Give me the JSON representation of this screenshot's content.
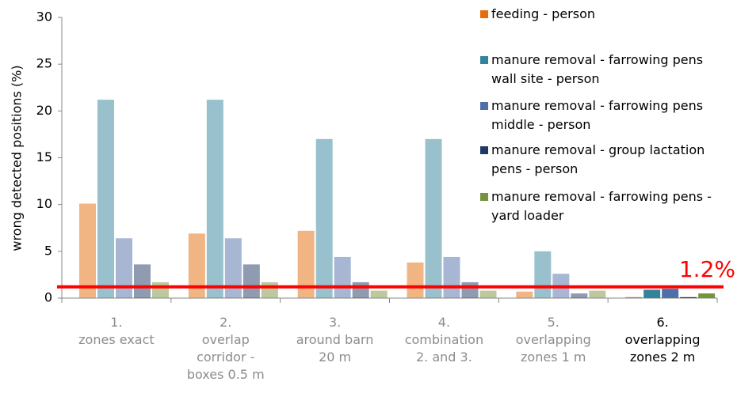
{
  "chart_data": {
    "type": "bar",
    "y_label": "wrong detected positions (%)",
    "categories": [
      [
        "1.",
        "zones exact"
      ],
      [
        "2.",
        "overlap",
        "corridor -",
        "boxes 0.5 m"
      ],
      [
        "3.",
        "around barn",
        "20 m"
      ],
      [
        "4.",
        "combination",
        "2. and 3."
      ],
      [
        "5.",
        "overlapping",
        "zones 1 m"
      ],
      [
        "6.",
        "overlapping",
        "zones 2 m"
      ]
    ],
    "highlighted_category": 5,
    "series": [
      {
        "name": "feeding - person",
        "color": "#e46c0a",
        "values": [
          10.1,
          6.9,
          7.2,
          3.8,
          0.7,
          0.1
        ]
      },
      {
        "name": "manure removal - farrowing pens wall site - person",
        "color": "#31849b",
        "values": [
          21.2,
          21.2,
          17.0,
          17.0,
          5.0,
          0.9
        ]
      },
      {
        "name": "manure removal - farrowing pens middle - person",
        "color": "#4f6fa8",
        "values": [
          6.4,
          6.4,
          4.4,
          4.4,
          2.6,
          1.0
        ]
      },
      {
        "name": "manure removal - group lactation pens - person",
        "color": "#1f3864",
        "values": [
          3.6,
          3.6,
          1.7,
          1.7,
          0.5,
          0.1
        ]
      },
      {
        "name": "manure removal - farrowing pens - yard loader",
        "color": "#77933c",
        "values": [
          1.7,
          1.7,
          0.8,
          0.8,
          0.8,
          0.5
        ]
      }
    ],
    "reference_line": {
      "value": 1.2,
      "label": "1.2%",
      "color": "#ff0000"
    },
    "ylim": [
      0,
      30
    ],
    "yticks": [
      0,
      5,
      10,
      15,
      20,
      25,
      30
    ]
  }
}
